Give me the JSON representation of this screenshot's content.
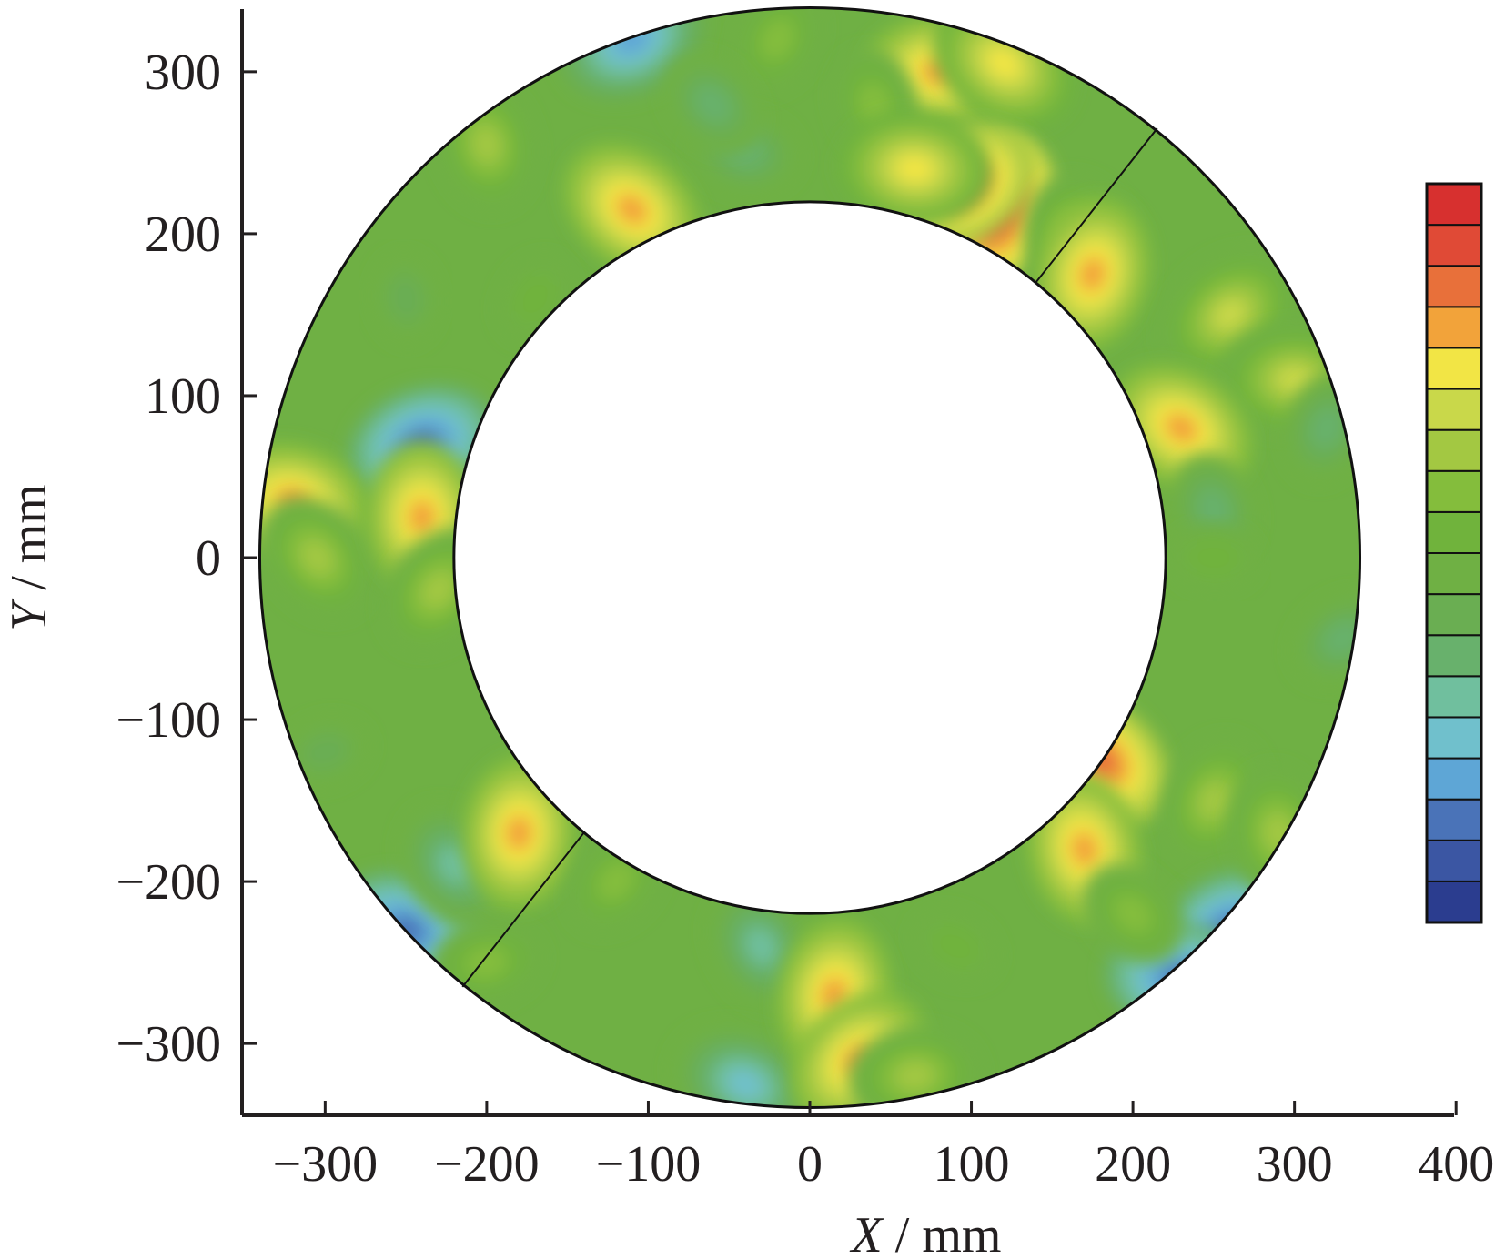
{
  "chart_data": {
    "type": "heatmap",
    "subtype": "annular contour map",
    "xlabel": {
      "var": "X",
      "unit": " / mm"
    },
    "ylabel": {
      "var": "Y",
      "unit": " / mm"
    },
    "xlim": [
      -350,
      400
    ],
    "ylim": [
      -345,
      340
    ],
    "x_ticks": [
      {
        "value": -300,
        "label": "−300"
      },
      {
        "value": -200,
        "label": "−200"
      },
      {
        "value": -100,
        "label": "−100"
      },
      {
        "value": 0,
        "label": "0"
      },
      {
        "value": 100,
        "label": "100"
      },
      {
        "value": 200,
        "label": "200"
      },
      {
        "value": 300,
        "label": "300"
      },
      {
        "value": 400,
        "label": "400"
      }
    ],
    "y_ticks": [
      {
        "value": 300,
        "label": "300"
      },
      {
        "value": 200,
        "label": "200"
      },
      {
        "value": 100,
        "label": "100"
      },
      {
        "value": 0,
        "label": "0"
      },
      {
        "value": -100,
        "label": "−100"
      },
      {
        "value": -200,
        "label": "−200"
      },
      {
        "value": -300,
        "label": "−300"
      }
    ],
    "ring": {
      "center": [
        0,
        0
      ],
      "outer_radius": 340,
      "inner_radius": 220
    },
    "segment_dividers": [
      {
        "inner": [
          140,
          170
        ],
        "outer": [
          215,
          265
        ]
      },
      {
        "inner": [
          -140,
          -170
        ],
        "outer": [
          -215,
          -265
        ]
      }
    ],
    "base_level": 8,
    "hotspots": [
      {
        "x": 80,
        "y": 300,
        "level": 14
      },
      {
        "x": 120,
        "y": 305,
        "level": 13
      },
      {
        "x": 40,
        "y": 280,
        "level": 10
      },
      {
        "x": 115,
        "y": 215,
        "level": 16
      },
      {
        "x": 95,
        "y": 230,
        "level": 15
      },
      {
        "x": 65,
        "y": 240,
        "level": 13
      },
      {
        "x": -110,
        "y": 215,
        "level": 14
      },
      {
        "x": -200,
        "y": 255,
        "level": 11
      },
      {
        "x": -20,
        "y": 320,
        "level": 10
      },
      {
        "x": -110,
        "y": 320,
        "level": 3
      },
      {
        "x": -40,
        "y": 250,
        "level": 6
      },
      {
        "x": -60,
        "y": 280,
        "level": 6
      },
      {
        "x": -250,
        "y": 160,
        "level": 7
      },
      {
        "x": -170,
        "y": 160,
        "level": 9
      },
      {
        "x": -240,
        "y": 70,
        "level": 2
      },
      {
        "x": -320,
        "y": 35,
        "level": 14
      },
      {
        "x": -305,
        "y": 0,
        "level": 11
      },
      {
        "x": -240,
        "y": 25,
        "level": 14
      },
      {
        "x": -230,
        "y": -20,
        "level": 11
      },
      {
        "x": -300,
        "y": -120,
        "level": 7
      },
      {
        "x": -250,
        "y": -230,
        "level": 2
      },
      {
        "x": -220,
        "y": -190,
        "level": 5
      },
      {
        "x": -180,
        "y": -170,
        "level": 14
      },
      {
        "x": -120,
        "y": -200,
        "level": 10
      },
      {
        "x": -200,
        "y": -250,
        "level": 10
      },
      {
        "x": -40,
        "y": -325,
        "level": 4
      },
      {
        "x": -30,
        "y": -240,
        "level": 5
      },
      {
        "x": 15,
        "y": -270,
        "level": 14
      },
      {
        "x": 30,
        "y": -310,
        "level": 14
      },
      {
        "x": 65,
        "y": -320,
        "level": 11
      },
      {
        "x": 90,
        "y": -240,
        "level": 9
      },
      {
        "x": 170,
        "y": 190,
        "level": 12
      },
      {
        "x": 175,
        "y": 175,
        "level": 14
      },
      {
        "x": 260,
        "y": 150,
        "level": 12
      },
      {
        "x": 300,
        "y": 110,
        "level": 12
      },
      {
        "x": 230,
        "y": 80,
        "level": 14
      },
      {
        "x": 250,
        "y": 30,
        "level": 6
      },
      {
        "x": 320,
        "y": 80,
        "level": 6
      },
      {
        "x": 330,
        "y": -50,
        "level": 6
      },
      {
        "x": 250,
        "y": 0,
        "level": 9
      },
      {
        "x": 180,
        "y": -125,
        "level": 15
      },
      {
        "x": 170,
        "y": -180,
        "level": 14
      },
      {
        "x": 250,
        "y": -150,
        "level": 11
      },
      {
        "x": 260,
        "y": -230,
        "level": 2
      },
      {
        "x": 230,
        "y": -260,
        "level": 2
      },
      {
        "x": 200,
        "y": -220,
        "level": 10
      },
      {
        "x": 290,
        "y": -170,
        "level": 11
      }
    ],
    "colorbar": {
      "levels": 17,
      "colors": [
        "#2b3d8f",
        "#3b56a3",
        "#4a73b8",
        "#5ea6d6",
        "#70c0cc",
        "#70bf9e",
        "#68b16c",
        "#6aae52",
        "#6fb044",
        "#70b33c",
        "#84bd3c",
        "#a3c842",
        "#c9d84a",
        "#f2e545",
        "#f2a33a",
        "#e8703a",
        "#e04a36",
        "#d7302f"
      ]
    }
  }
}
